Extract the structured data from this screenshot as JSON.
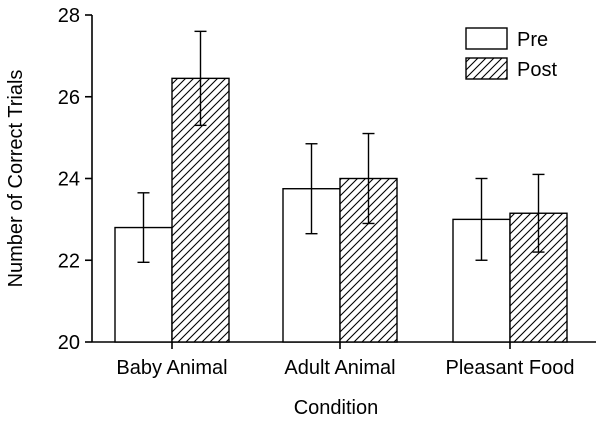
{
  "chart_data": {
    "type": "bar",
    "title": "",
    "xlabel": "Condition",
    "ylabel": "Number of Correct Trials",
    "categories": [
      "Baby Animal",
      "Adult Animal",
      "Pleasant Food"
    ],
    "series": [
      {
        "name": "Pre",
        "fill": "white",
        "values": [
          22.8,
          23.75,
          23.0
        ],
        "error": [
          0.85,
          1.1,
          1.0
        ]
      },
      {
        "name": "Post",
        "fill": "hatched",
        "values": [
          26.45,
          24.0,
          23.15
        ],
        "error": [
          1.15,
          1.1,
          0.95
        ]
      }
    ],
    "ylim": [
      20,
      28
    ],
    "yticks": [
      20,
      22,
      24,
      26,
      28
    ],
    "grid": false,
    "legend_position": "top-right",
    "colors": {
      "bar_edge": "#000000",
      "axis": "#000000",
      "text": "#000000"
    }
  }
}
